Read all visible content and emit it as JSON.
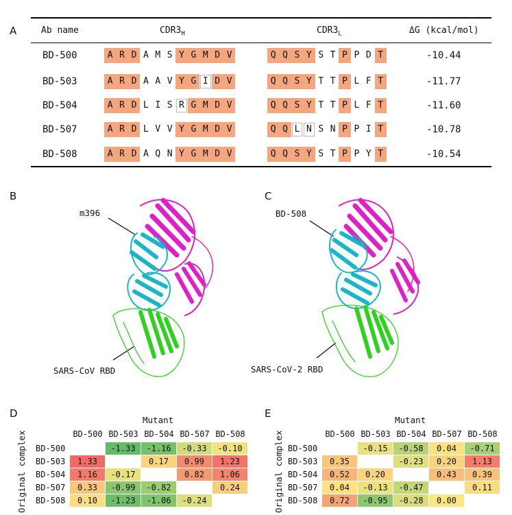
{
  "panels": {
    "a": "A",
    "b": "B",
    "c": "C",
    "d": "D",
    "e": "E"
  },
  "table": {
    "header_name": "Ab name",
    "header_h": "CDR3",
    "header_h_sub": "H",
    "header_l": "CDR3",
    "header_l_sub": "L",
    "header_dg": "ΔG (kcal/mol)",
    "rows": [
      {
        "name": "BD-500",
        "h": [
          [
            "A",
            1
          ],
          [
            "R",
            1
          ],
          [
            "D",
            1
          ],
          [
            "A",
            0
          ],
          [
            "M",
            0
          ],
          [
            "S",
            0
          ],
          [
            "Y",
            1
          ],
          [
            "G",
            1
          ],
          [
            "M",
            1
          ],
          [
            "D",
            1
          ],
          [
            "V",
            1
          ]
        ],
        "l": [
          [
            "Q",
            1
          ],
          [
            "Q",
            1
          ],
          [
            "S",
            1
          ],
          [
            "Y",
            1
          ],
          [
            "S",
            0
          ],
          [
            "T",
            0
          ],
          [
            "P",
            1
          ],
          [
            "P",
            0
          ],
          [
            "D",
            0
          ],
          [
            "T",
            1
          ]
        ],
        "dg": "-10.44"
      },
      {
        "name": "BD-503",
        "h": [
          [
            "A",
            1
          ],
          [
            "R",
            1
          ],
          [
            "D",
            1
          ],
          [
            "A",
            0
          ],
          [
            "A",
            0
          ],
          [
            "V",
            0
          ],
          [
            "Y",
            1
          ],
          [
            "G",
            1
          ],
          [
            "I",
            2
          ],
          [
            "D",
            1
          ],
          [
            "V",
            1
          ]
        ],
        "l": [
          [
            "Q",
            1
          ],
          [
            "Q",
            1
          ],
          [
            "S",
            1
          ],
          [
            "Y",
            1
          ],
          [
            "T",
            0
          ],
          [
            "T",
            0
          ],
          [
            "P",
            1
          ],
          [
            "L",
            0
          ],
          [
            "F",
            0
          ],
          [
            "T",
            1
          ]
        ],
        "dg": "-11.77"
      },
      {
        "name": "BD-504",
        "h": [
          [
            "A",
            1
          ],
          [
            "R",
            1
          ],
          [
            "D",
            1
          ],
          [
            "L",
            0
          ],
          [
            "I",
            0
          ],
          [
            "S",
            0
          ],
          [
            "R",
            2
          ],
          [
            "G",
            1
          ],
          [
            "M",
            1
          ],
          [
            "D",
            1
          ],
          [
            "V",
            1
          ]
        ],
        "l": [
          [
            "Q",
            1
          ],
          [
            "Q",
            1
          ],
          [
            "S",
            1
          ],
          [
            "Y",
            1
          ],
          [
            "T",
            0
          ],
          [
            "T",
            0
          ],
          [
            "P",
            1
          ],
          [
            "L",
            0
          ],
          [
            "F",
            0
          ],
          [
            "T",
            1
          ]
        ],
        "dg": "-11.60"
      },
      {
        "name": "BD-507",
        "h": [
          [
            "A",
            1
          ],
          [
            "R",
            1
          ],
          [
            "D",
            1
          ],
          [
            "L",
            0
          ],
          [
            "V",
            0
          ],
          [
            "V",
            0
          ],
          [
            "Y",
            1
          ],
          [
            "G",
            1
          ],
          [
            "M",
            1
          ],
          [
            "D",
            1
          ],
          [
            "V",
            1
          ]
        ],
        "l": [
          [
            "Q",
            1
          ],
          [
            "Q",
            1
          ],
          [
            "L",
            2
          ],
          [
            "N",
            2
          ],
          [
            "S",
            0
          ],
          [
            "N",
            0
          ],
          [
            "P",
            1
          ],
          [
            "P",
            0
          ],
          [
            "I",
            0
          ],
          [
            "T",
            1
          ]
        ],
        "dg": "-10.78"
      },
      {
        "name": "BD-508",
        "h": [
          [
            "A",
            1
          ],
          [
            "R",
            1
          ],
          [
            "D",
            1
          ],
          [
            "A",
            0
          ],
          [
            "Q",
            0
          ],
          [
            "N",
            0
          ],
          [
            "Y",
            1
          ],
          [
            "G",
            1
          ],
          [
            "M",
            1
          ],
          [
            "D",
            1
          ],
          [
            "V",
            1
          ]
        ],
        "l": [
          [
            "Q",
            1
          ],
          [
            "Q",
            1
          ],
          [
            "S",
            1
          ],
          [
            "Y",
            1
          ],
          [
            "S",
            0
          ],
          [
            "T",
            0
          ],
          [
            "P",
            1
          ],
          [
            "P",
            0
          ],
          [
            "Y",
            0
          ],
          [
            "T",
            1
          ]
        ],
        "dg": "-10.54"
      }
    ]
  },
  "structures": {
    "b_antibody": "m396",
    "b_rbd": "SARS-CoV RBD",
    "c_antibody": "BD-508",
    "c_rbd": "SARS-CoV-2 RBD",
    "colors": {
      "heavy": "#e11fc8",
      "light": "#17b7c6",
      "rbd": "#2ed11e"
    }
  },
  "chart_data": [
    {
      "type": "heatmap",
      "title": "Mutant",
      "ylabel": "Original complex",
      "columns": [
        "BD-500",
        "BD-503",
        "BD-504",
        "BD-507",
        "BD-508"
      ],
      "rows": [
        "BD-500",
        "BD-503",
        "BD-504",
        "BD-507",
        "BD-508"
      ],
      "values": [
        [
          null,
          -1.33,
          -1.16,
          -0.33,
          -0.1
        ],
        [
          1.33,
          null,
          0.17,
          0.99,
          1.23
        ],
        [
          1.16,
          -0.17,
          null,
          0.82,
          1.06
        ],
        [
          0.33,
          -0.99,
          -0.82,
          null,
          0.24
        ],
        [
          0.1,
          -1.23,
          -1.06,
          -0.24,
          null
        ]
      ],
      "labels": [
        [
          "",
          "-1.33",
          "-1.16",
          "-0.33",
          "-0.10"
        ],
        [
          "1.33",
          "",
          "0.17",
          "0.99",
          "1.23"
        ],
        [
          "1.16",
          "-0.17",
          "",
          "0.82",
          "1.06"
        ],
        [
          "0.33",
          "-0.99",
          "-0.82",
          "",
          "0.24"
        ],
        [
          "0.10",
          "-1.23",
          "-1.06",
          "-0.24",
          ""
        ]
      ]
    },
    {
      "type": "heatmap",
      "title": "Mutant",
      "ylabel": "Original complex",
      "columns": [
        "BD-500",
        "BD-503",
        "BD-504",
        "BD-507",
        "BD-508"
      ],
      "rows": [
        "BD-500",
        "BD-503",
        "BD-504",
        "BD-507",
        "BD-508"
      ],
      "values": [
        [
          null,
          -0.15,
          -0.58,
          0.04,
          -0.71
        ],
        [
          0.35,
          null,
          -0.23,
          0.2,
          1.13
        ],
        [
          0.52,
          0.2,
          null,
          0.43,
          0.39
        ],
        [
          0.04,
          -0.13,
          -0.47,
          null,
          0.11
        ],
        [
          0.72,
          -0.95,
          -0.28,
          0.0,
          null
        ]
      ],
      "labels": [
        [
          "",
          "-0.15",
          "-0.58",
          "0.04",
          "-0.71"
        ],
        [
          "0.35",
          "",
          "-0.23",
          "0.20",
          "1.13"
        ],
        [
          "0.52",
          "0.20",
          "",
          "0.43",
          "0.39"
        ],
        [
          "0.04",
          "-0.13",
          "-0.47",
          "",
          "0.11"
        ],
        [
          "0.72",
          "-0.95",
          "-0.28",
          "0.00",
          ""
        ]
      ]
    }
  ]
}
